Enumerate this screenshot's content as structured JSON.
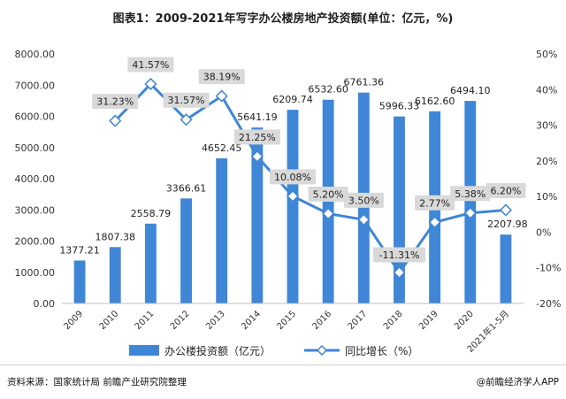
{
  "title": "图表1：2009-2021年写字办公楼房地产投资额(单位：亿元，%)",
  "source": "资料来源：国家统计局 前瞻产业研究院整理",
  "brand": "@前瞻经济学人APP",
  "chart_data": {
    "type": "bar",
    "categories": [
      "2009",
      "2010",
      "2011",
      "2012",
      "2013",
      "2014",
      "2015",
      "2016",
      "2017",
      "2018",
      "2019",
      "2020",
      "2021年1-5月"
    ],
    "series": [
      {
        "name": "办公楼投资额（亿元）",
        "type": "bar",
        "axis": "left",
        "values": [
          1377.21,
          1807.38,
          2558.79,
          3366.61,
          4652.45,
          5641.19,
          6209.74,
          6532.6,
          6761.36,
          5996.33,
          6162.6,
          6494.1,
          2207.98
        ],
        "labels": [
          "1377.21",
          "1807.38",
          "2558.79",
          "3366.61",
          "4652.45",
          "5641.19",
          "6209.74",
          "6532.60",
          "6761.36",
          "5996.33",
          "6162.60",
          "6494.10",
          "2207.98"
        ]
      },
      {
        "name": "同比增长（%）",
        "type": "line",
        "axis": "right",
        "values": [
          null,
          31.23,
          41.57,
          31.57,
          38.19,
          21.25,
          10.08,
          5.2,
          3.5,
          -11.31,
          2.77,
          5.38,
          6.2
        ],
        "labels": [
          "",
          "31.23%",
          "41.57%",
          "31.57%",
          "38.19%",
          "21.25%",
          "10.08%",
          "5.20%",
          "3.50%",
          "-11.31%",
          "2.77%",
          "5.38%",
          "6.20%"
        ]
      }
    ],
    "y_left": {
      "min": 0,
      "max": 8000,
      "step": 1000,
      "ticks": [
        "0.00",
        "1000.00",
        "2000.00",
        "3000.00",
        "4000.00",
        "5000.00",
        "6000.00",
        "7000.00",
        "8000.00"
      ]
    },
    "y_right": {
      "min": -20,
      "max": 50,
      "step": 10,
      "ticks": [
        "-20%",
        "-10%",
        "0%",
        "10%",
        "20%",
        "30%",
        "40%",
        "50%"
      ]
    },
    "grid": false,
    "legend_position": "bottom",
    "colors": {
      "bar": "#3f86d6",
      "line": "#3f86d6",
      "marker_fill": "#ffffff",
      "label_box": "#d9d9d9"
    }
  }
}
